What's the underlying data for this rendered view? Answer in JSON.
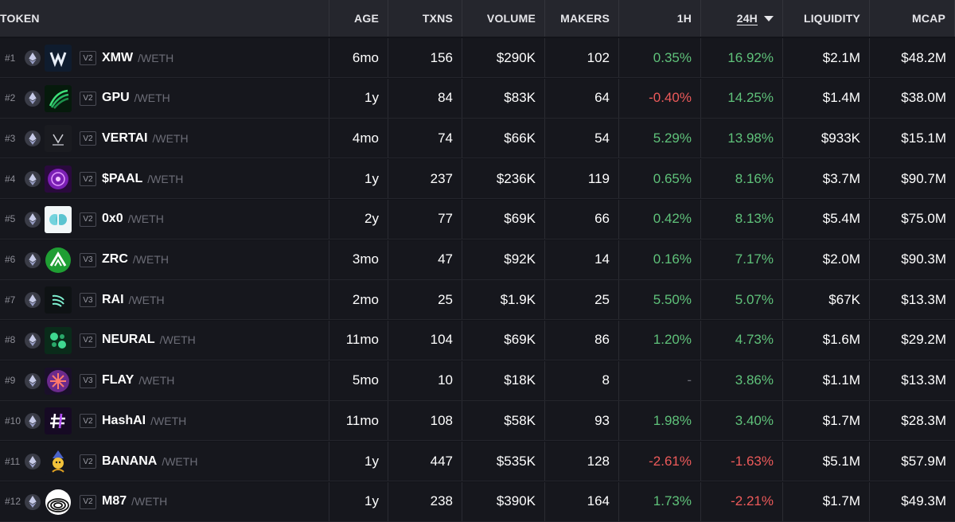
{
  "header": {
    "token": "TOKEN",
    "age": "AGE",
    "txns": "TXNS",
    "volume": "VOLUME",
    "makers": "MAKERS",
    "h1": "1H",
    "h24": "24H",
    "liquidity": "LIQUIDITY",
    "mcap": "MCAP"
  },
  "colors": {
    "positive": "#5fc27a",
    "negative": "#ed5a5a",
    "header_bg": "#25262d",
    "row_bg": "#16171d"
  },
  "rows": [
    {
      "rank": "#1",
      "version": "V2",
      "symbol": "XMW",
      "pair": "/WETH",
      "age": "6mo",
      "txns": "156",
      "volume": "$290K",
      "makers": "102",
      "h1": "0.35%",
      "h24": "16.92%",
      "liquidity": "$2.1M",
      "mcap": "$48.2M",
      "chain_icon": "ethereum-icon",
      "logo_icon": "xmw-logo-icon"
    },
    {
      "rank": "#2",
      "version": "V2",
      "symbol": "GPU",
      "pair": "/WETH",
      "age": "1y",
      "txns": "84",
      "volume": "$83K",
      "makers": "64",
      "h1": "-0.40%",
      "h24": "14.25%",
      "liquidity": "$1.4M",
      "mcap": "$38.0M",
      "chain_icon": "ethereum-icon",
      "logo_icon": "gpu-logo-icon"
    },
    {
      "rank": "#3",
      "version": "V2",
      "symbol": "VERTAI",
      "pair": "/WETH",
      "age": "4mo",
      "txns": "74",
      "volume": "$66K",
      "makers": "54",
      "h1": "5.29%",
      "h24": "13.98%",
      "liquidity": "$933K",
      "mcap": "$15.1M",
      "chain_icon": "ethereum-icon",
      "logo_icon": "vertai-logo-icon"
    },
    {
      "rank": "#4",
      "version": "V2",
      "symbol": "$PAAL",
      "pair": "/WETH",
      "age": "1y",
      "txns": "237",
      "volume": "$236K",
      "makers": "119",
      "h1": "0.65%",
      "h24": "8.16%",
      "liquidity": "$3.7M",
      "mcap": "$90.7M",
      "chain_icon": "ethereum-icon",
      "logo_icon": "paal-logo-icon"
    },
    {
      "rank": "#5",
      "version": "V2",
      "symbol": "0x0",
      "pair": "/WETH",
      "age": "2y",
      "txns": "77",
      "volume": "$69K",
      "makers": "66",
      "h1": "0.42%",
      "h24": "8.13%",
      "liquidity": "$5.4M",
      "mcap": "$75.0M",
      "chain_icon": "ethereum-icon",
      "logo_icon": "0x0-logo-icon"
    },
    {
      "rank": "#6",
      "version": "V3",
      "symbol": "ZRC",
      "pair": "/WETH",
      "age": "3mo",
      "txns": "47",
      "volume": "$92K",
      "makers": "14",
      "h1": "0.16%",
      "h24": "7.17%",
      "liquidity": "$2.0M",
      "mcap": "$90.3M",
      "chain_icon": "ethereum-icon",
      "logo_icon": "zrc-logo-icon"
    },
    {
      "rank": "#7",
      "version": "V3",
      "symbol": "RAI",
      "pair": "/WETH",
      "age": "2mo",
      "txns": "25",
      "volume": "$1.9K",
      "makers": "25",
      "h1": "5.50%",
      "h24": "5.07%",
      "liquidity": "$67K",
      "mcap": "$13.3M",
      "chain_icon": "ethereum-icon",
      "logo_icon": "rai-logo-icon"
    },
    {
      "rank": "#8",
      "version": "V2",
      "symbol": "NEURAL",
      "pair": "/WETH",
      "age": "11mo",
      "txns": "104",
      "volume": "$69K",
      "makers": "86",
      "h1": "1.20%",
      "h24": "4.73%",
      "liquidity": "$1.6M",
      "mcap": "$29.2M",
      "chain_icon": "ethereum-icon",
      "logo_icon": "neural-logo-icon"
    },
    {
      "rank": "#9",
      "version": "V3",
      "symbol": "FLAY",
      "pair": "/WETH",
      "age": "5mo",
      "txns": "10",
      "volume": "$18K",
      "makers": "8",
      "h1": "-",
      "h24": "3.86%",
      "liquidity": "$1.1M",
      "mcap": "$13.3M",
      "chain_icon": "ethereum-icon",
      "logo_icon": "flay-logo-icon"
    },
    {
      "rank": "#10",
      "version": "V2",
      "symbol": "HashAI",
      "pair": "/WETH",
      "age": "11mo",
      "txns": "108",
      "volume": "$58K",
      "makers": "93",
      "h1": "1.98%",
      "h24": "3.40%",
      "liquidity": "$1.7M",
      "mcap": "$28.3M",
      "chain_icon": "ethereum-icon",
      "logo_icon": "hashai-logo-icon"
    },
    {
      "rank": "#11",
      "version": "V2",
      "symbol": "BANANA",
      "pair": "/WETH",
      "age": "1y",
      "txns": "447",
      "volume": "$535K",
      "makers": "128",
      "h1": "-2.61%",
      "h24": "-1.63%",
      "liquidity": "$5.1M",
      "mcap": "$57.9M",
      "chain_icon": "ethereum-icon",
      "logo_icon": "banana-logo-icon"
    },
    {
      "rank": "#12",
      "version": "V2",
      "symbol": "M87",
      "pair": "/WETH",
      "age": "1y",
      "txns": "238",
      "volume": "$390K",
      "makers": "164",
      "h1": "1.73%",
      "h24": "-2.21%",
      "liquidity": "$1.7M",
      "mcap": "$49.3M",
      "chain_icon": "ethereum-icon",
      "logo_icon": "m87-logo-icon"
    }
  ]
}
